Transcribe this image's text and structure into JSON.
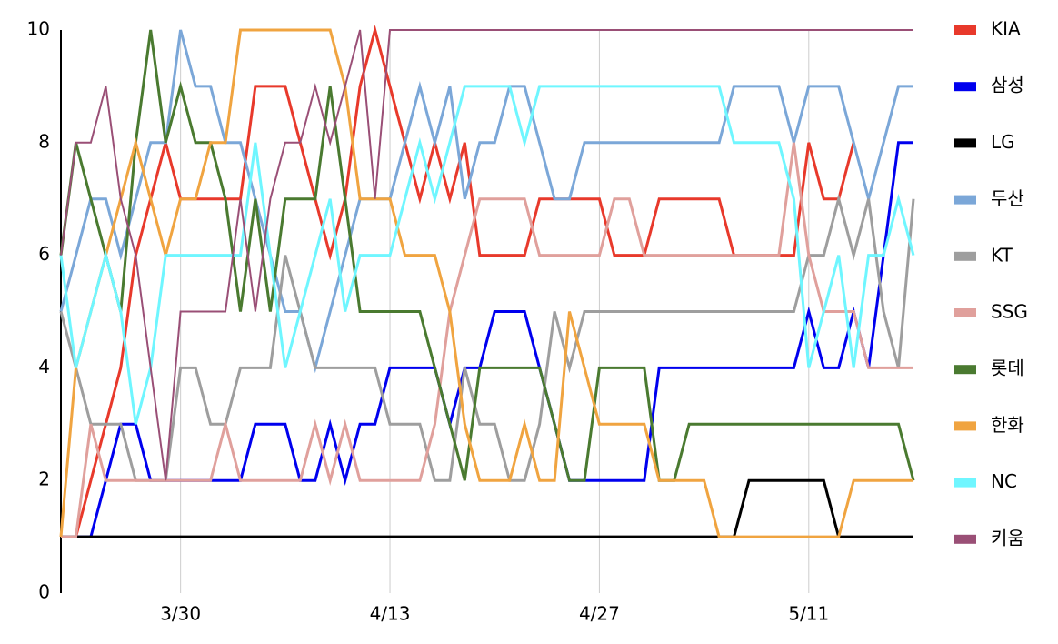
{
  "chart_data": {
    "type": "line",
    "categories": [
      null,
      null,
      null,
      null,
      null,
      null,
      null,
      null,
      "3/30",
      null,
      null,
      null,
      null,
      null,
      null,
      null,
      null,
      null,
      null,
      null,
      null,
      null,
      "4/13",
      null,
      null,
      null,
      null,
      null,
      null,
      null,
      null,
      null,
      null,
      null,
      null,
      null,
      "4/27",
      null,
      null,
      null,
      null,
      null,
      null,
      null,
      null,
      null,
      null,
      null,
      null,
      null,
      "5/11",
      null,
      null,
      null,
      null,
      null,
      null,
      null
    ],
    "ylim": [
      0,
      10
    ],
    "yticks": [
      0,
      2,
      4,
      6,
      8,
      10
    ],
    "grid": true,
    "legend": "right",
    "series": [
      {
        "name": "KIA",
        "color": "#e8392b",
        "values": [
          1,
          1,
          2,
          3,
          4,
          6,
          7,
          8,
          7,
          7,
          7,
          7,
          7,
          9,
          9,
          9,
          8,
          7,
          6,
          7,
          9,
          10,
          9,
          8,
          7,
          8,
          7,
          8,
          6,
          6,
          6,
          6,
          7,
          7,
          7,
          7,
          7,
          6,
          6,
          6,
          7,
          7,
          7,
          7,
          7,
          6,
          6,
          6,
          6,
          6,
          8,
          7,
          7,
          8,
          null,
          null,
          null,
          null
        ]
      },
      {
        "name": "삼성",
        "color": "#0000ee",
        "values": [
          1,
          1,
          1,
          2,
          3,
          3,
          2,
          2,
          2,
          2,
          2,
          2,
          2,
          3,
          3,
          3,
          2,
          2,
          3,
          2,
          3,
          3,
          4,
          4,
          4,
          4,
          3,
          4,
          4,
          5,
          5,
          5,
          4,
          3,
          2,
          2,
          2,
          2,
          2,
          2,
          4,
          4,
          4,
          4,
          4,
          4,
          4,
          4,
          4,
          4,
          5,
          4,
          4,
          5,
          4,
          6,
          8,
          8
        ]
      },
      {
        "name": "LG",
        "color": "#000000",
        "values": [
          1,
          1,
          1,
          1,
          1,
          1,
          1,
          1,
          1,
          1,
          1,
          1,
          1,
          1,
          1,
          1,
          1,
          1,
          1,
          1,
          1,
          1,
          1,
          1,
          1,
          1,
          1,
          1,
          1,
          1,
          1,
          1,
          1,
          1,
          1,
          1,
          1,
          1,
          1,
          1,
          1,
          1,
          1,
          1,
          1,
          1,
          2,
          2,
          2,
          2,
          2,
          2,
          1,
          1,
          1,
          1,
          1,
          1
        ]
      },
      {
        "name": "두산",
        "color": "#7ba7d8",
        "values": [
          5,
          6,
          7,
          7,
          6,
          7,
          8,
          8,
          10,
          9,
          9,
          8,
          8,
          7,
          6,
          5,
          5,
          4,
          5,
          6,
          7,
          7,
          7,
          8,
          9,
          8,
          9,
          7,
          8,
          8,
          9,
          9,
          8,
          7,
          7,
          8,
          8,
          8,
          8,
          8,
          8,
          8,
          8,
          8,
          8,
          9,
          9,
          9,
          9,
          8,
          9,
          9,
          9,
          8,
          7,
          8,
          9,
          9
        ]
      },
      {
        "name": "KT",
        "color": "#9e9e9e",
        "values": [
          5,
          4,
          3,
          3,
          3,
          2,
          2,
          2,
          4,
          4,
          3,
          3,
          4,
          4,
          4,
          6,
          5,
          4,
          4,
          4,
          4,
          4,
          3,
          3,
          3,
          2,
          2,
          4,
          3,
          3,
          2,
          2,
          3,
          5,
          4,
          5,
          5,
          5,
          5,
          5,
          5,
          5,
          5,
          5,
          5,
          5,
          5,
          5,
          5,
          5,
          6,
          6,
          7,
          6,
          7,
          5,
          4,
          7
        ]
      },
      {
        "name": "SSG",
        "color": "#e0a09c",
        "values": [
          1,
          1,
          3,
          2,
          2,
          2,
          2,
          2,
          2,
          2,
          2,
          3,
          2,
          2,
          2,
          2,
          2,
          3,
          2,
          3,
          2,
          2,
          2,
          2,
          2,
          3,
          5,
          6,
          7,
          7,
          7,
          7,
          6,
          6,
          6,
          6,
          6,
          7,
          7,
          6,
          6,
          6,
          6,
          6,
          6,
          6,
          6,
          6,
          6,
          8,
          6,
          5,
          5,
          5,
          4,
          4,
          4,
          4
        ]
      },
      {
        "name": "롯데",
        "color": "#4a7a30",
        "values": [
          6,
          8,
          7,
          6,
          5,
          8,
          10,
          8,
          9,
          8,
          8,
          7,
          5,
          7,
          5,
          7,
          7,
          7,
          9,
          7,
          5,
          5,
          5,
          5,
          5,
          4,
          3,
          2,
          4,
          4,
          4,
          4,
          4,
          3,
          2,
          2,
          4,
          4,
          4,
          4,
          2,
          2,
          3,
          3,
          3,
          3,
          3,
          3,
          3,
          3,
          3,
          3,
          3,
          3,
          3,
          3,
          3,
          2
        ]
      },
      {
        "name": "한화",
        "color": "#f0a440",
        "values": [
          1,
          4,
          5,
          6,
          7,
          8,
          7,
          6,
          7,
          7,
          8,
          8,
          10,
          10,
          10,
          10,
          10,
          10,
          10,
          9,
          7,
          7,
          7,
          6,
          6,
          6,
          5,
          3,
          2,
          2,
          2,
          3,
          2,
          2,
          5,
          4,
          3,
          3,
          3,
          3,
          2,
          2,
          2,
          2,
          1,
          1,
          1,
          1,
          1,
          1,
          1,
          1,
          1,
          2,
          2,
          2,
          2,
          2
        ]
      },
      {
        "name": "NC",
        "color": "#6ff6ff",
        "values": [
          6,
          4,
          5,
          6,
          5,
          3,
          4,
          6,
          6,
          6,
          6,
          6,
          6,
          8,
          6,
          4,
          5,
          6,
          7,
          5,
          6,
          6,
          6,
          7,
          8,
          7,
          8,
          9,
          9,
          9,
          9,
          8,
          9,
          9,
          9,
          9,
          9,
          9,
          9,
          9,
          9,
          9,
          9,
          9,
          9,
          8,
          8,
          8,
          8,
          7,
          4,
          5,
          6,
          4,
          6,
          6,
          7,
          6
        ]
      },
      {
        "name": "키움",
        "color": "#9a4f76",
        "values": [
          6,
          8,
          8,
          9,
          7,
          6,
          4,
          2,
          5,
          5,
          5,
          5,
          7,
          5,
          7,
          8,
          8,
          9,
          8,
          9,
          10,
          7,
          10,
          10,
          10,
          10,
          10,
          10,
          10,
          10,
          10,
          10,
          10,
          10,
          10,
          10,
          10,
          10,
          10,
          10,
          10,
          10,
          10,
          10,
          10,
          10,
          10,
          10,
          10,
          10,
          10,
          10,
          10,
          10,
          10,
          10,
          10,
          10
        ]
      }
    ]
  }
}
